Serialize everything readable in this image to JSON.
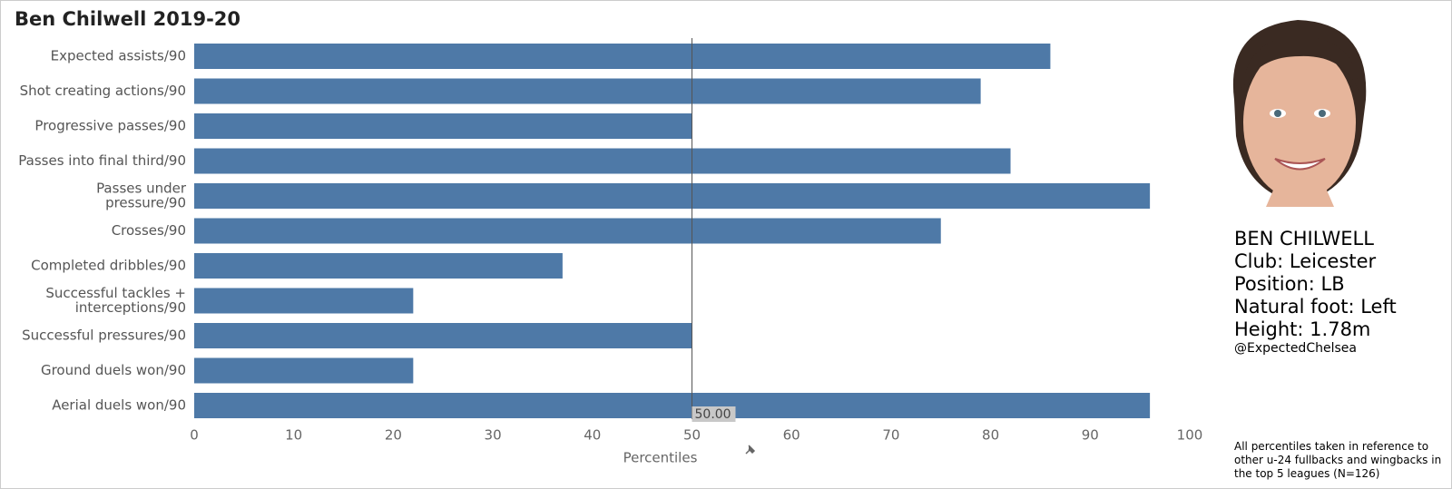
{
  "chart_data": {
    "type": "bar",
    "orientation": "horizontal",
    "title": "Ben Chilwell 2019-20",
    "categories": [
      [
        "Expected assists/90"
      ],
      [
        "Shot creating actions/90"
      ],
      [
        "Progressive passes/90"
      ],
      [
        "Passes into final third/90"
      ],
      [
        "Passes under",
        "pressure/90"
      ],
      [
        "Crosses/90"
      ],
      [
        "Completed dribbles/90"
      ],
      [
        "Successful tackles +",
        "interceptions/90"
      ],
      [
        "Successful pressures/90"
      ],
      [
        "Ground duels won/90"
      ],
      [
        "Aerial duels won/90"
      ]
    ],
    "values": [
      86,
      79,
      50,
      82,
      96,
      75,
      37,
      22,
      50,
      22,
      96
    ],
    "color": "#4e79a7",
    "xlim": [
      0,
      100
    ],
    "xticks": [
      0,
      10,
      20,
      30,
      40,
      50,
      60,
      70,
      80,
      90,
      100
    ],
    "x_label": "Percentiles",
    "reference_line": {
      "value": 50,
      "label": "50.00"
    }
  },
  "player": {
    "info": [
      "BEN CHILWELL",
      "Club: Leicester",
      "Position: LB",
      "Natural foot: Left",
      "Height: 1.78m"
    ],
    "handle": "@ExpectedChelsea",
    "note": "All percentiles taken in reference to other u-24 fullbacks and wingbacks in the top 5 leagues (N=126)"
  }
}
